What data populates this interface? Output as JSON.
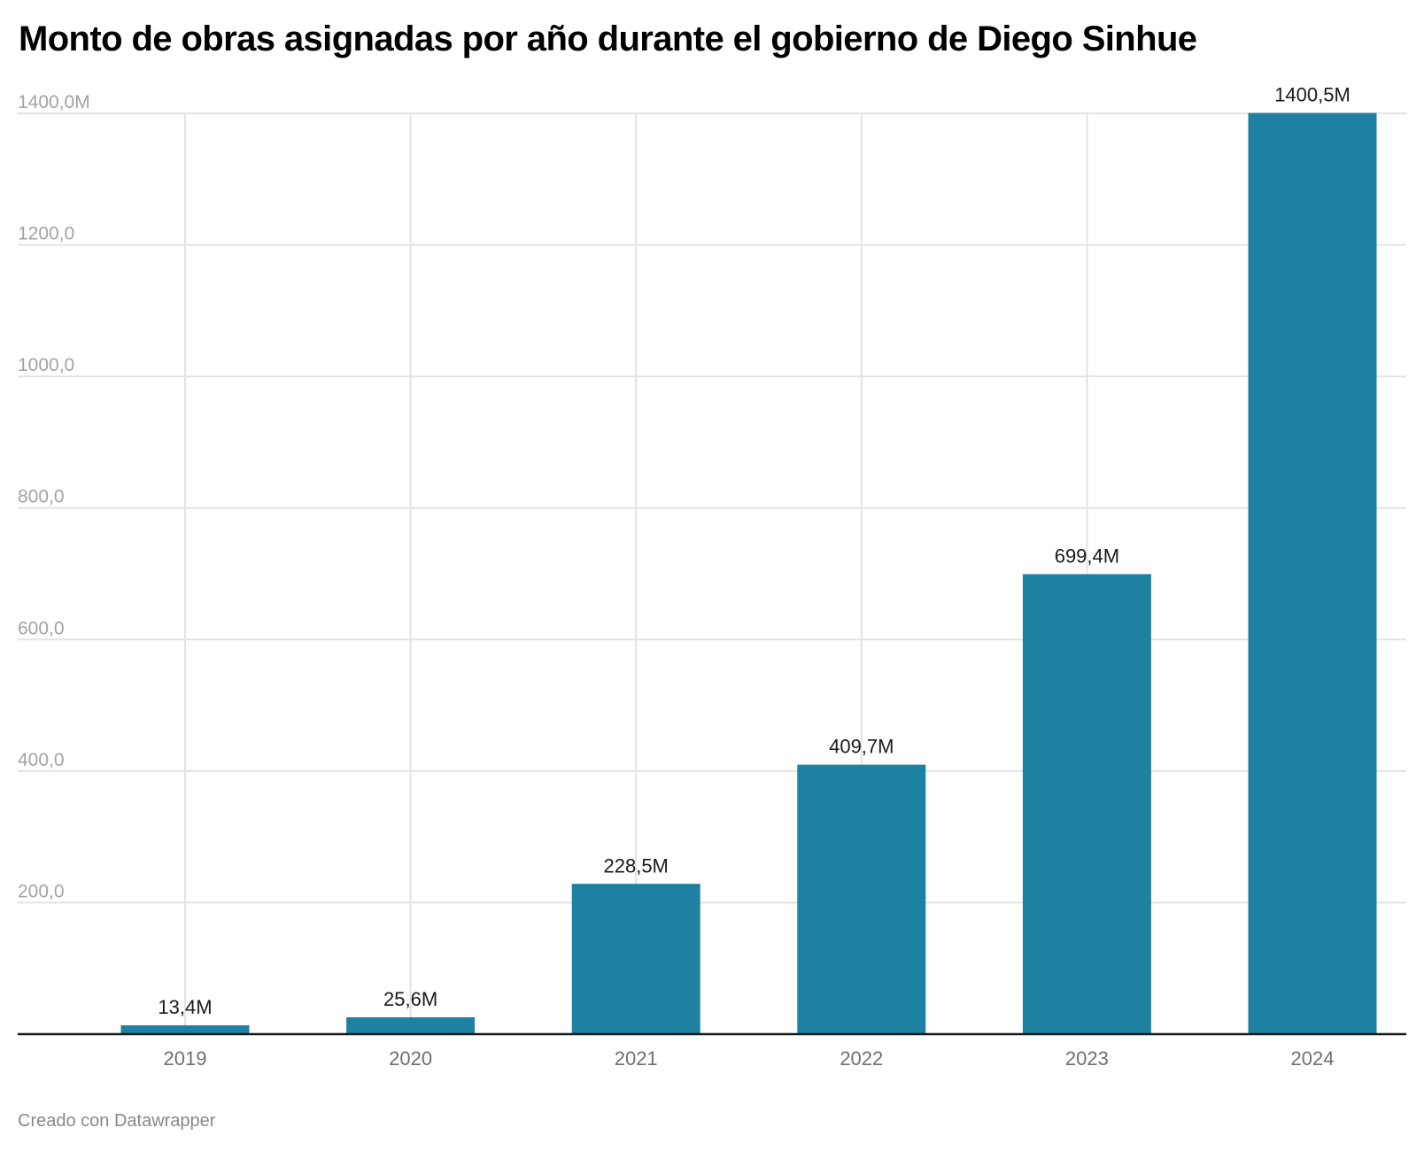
{
  "chart_data": {
    "type": "bar",
    "title": "Monto de obras asignadas por año durante el gobierno de Diego Sinhue",
    "xlabel": "",
    "ylabel": "",
    "categories": [
      "2019",
      "2020",
      "2021",
      "2022",
      "2023",
      "2024"
    ],
    "values": [
      13.4,
      25.6,
      228.5,
      409.7,
      699.4,
      1400.5
    ],
    "value_labels": [
      "13,4M",
      "25,6M",
      "228,5M",
      "409,7M",
      "699,4M",
      "1400,5M"
    ],
    "ylim": [
      0,
      1400
    ],
    "yticks": [
      200,
      400,
      600,
      800,
      1000,
      1200,
      1400
    ],
    "ytick_labels": [
      "200,0",
      "400,0",
      "600,0",
      "800,0",
      "1000,0",
      "1200,0",
      "1400,0M"
    ],
    "grid": true,
    "legend": "none",
    "colors": {
      "bar": "#1e81a1",
      "grid": "#e3e3e3",
      "axis": "#1a1a1a",
      "tick_label": "#a3a3a3",
      "x_label": "#707070",
      "value_label": "#1a1a1a"
    }
  },
  "footer": {
    "credit": "Creado con Datawrapper"
  }
}
